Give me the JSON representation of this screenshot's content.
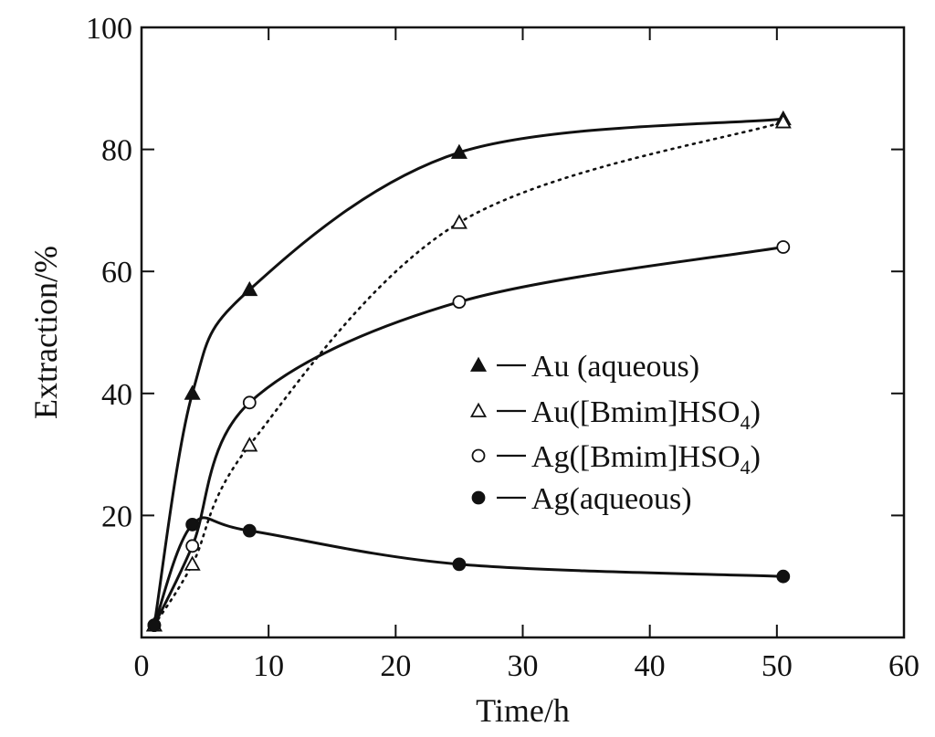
{
  "chart_data": {
    "type": "line",
    "title": "",
    "xlabel": "Time/h",
    "ylabel": "Extraction/%",
    "xlim": [
      0,
      60
    ],
    "ylim": [
      0,
      100
    ],
    "xticks": [
      0,
      10,
      20,
      30,
      40,
      50,
      60
    ],
    "yticks": [
      20,
      40,
      60,
      80,
      100
    ],
    "grid": false,
    "legend_position": "center-right",
    "series": [
      {
        "name": "Au (aqueous)",
        "marker": "filled-triangle",
        "line_style": "solid",
        "points": [
          [
            1,
            2
          ],
          [
            4,
            40
          ],
          [
            8.5,
            57
          ],
          [
            25,
            79.5
          ],
          [
            50.5,
            85
          ]
        ]
      },
      {
        "name": "Au([Bmim]HSO4)",
        "name_main": "Au([Bmim]HSO",
        "name_sub": "4",
        "name_tail": ")",
        "marker": "open-triangle",
        "line_style": "dotted",
        "points": [
          [
            1,
            2
          ],
          [
            4,
            12
          ],
          [
            8.5,
            31.5
          ],
          [
            25,
            68
          ],
          [
            50.5,
            84.5
          ]
        ]
      },
      {
        "name": "Ag([Bmim]HSO4)",
        "name_main": "Ag([Bmim]HSO",
        "name_sub": "4",
        "name_tail": ")",
        "marker": "open-circle",
        "line_style": "solid",
        "points": [
          [
            1,
            2
          ],
          [
            4,
            15
          ],
          [
            8.5,
            38.5
          ],
          [
            25,
            55
          ],
          [
            50.5,
            64
          ]
        ]
      },
      {
        "name": "Ag(aqueous)",
        "marker": "filled-circle",
        "line_style": "solid",
        "points": [
          [
            1,
            2
          ],
          [
            4,
            18.5
          ],
          [
            8.5,
            17.5
          ],
          [
            25,
            12
          ],
          [
            50.5,
            10
          ]
        ]
      }
    ]
  }
}
